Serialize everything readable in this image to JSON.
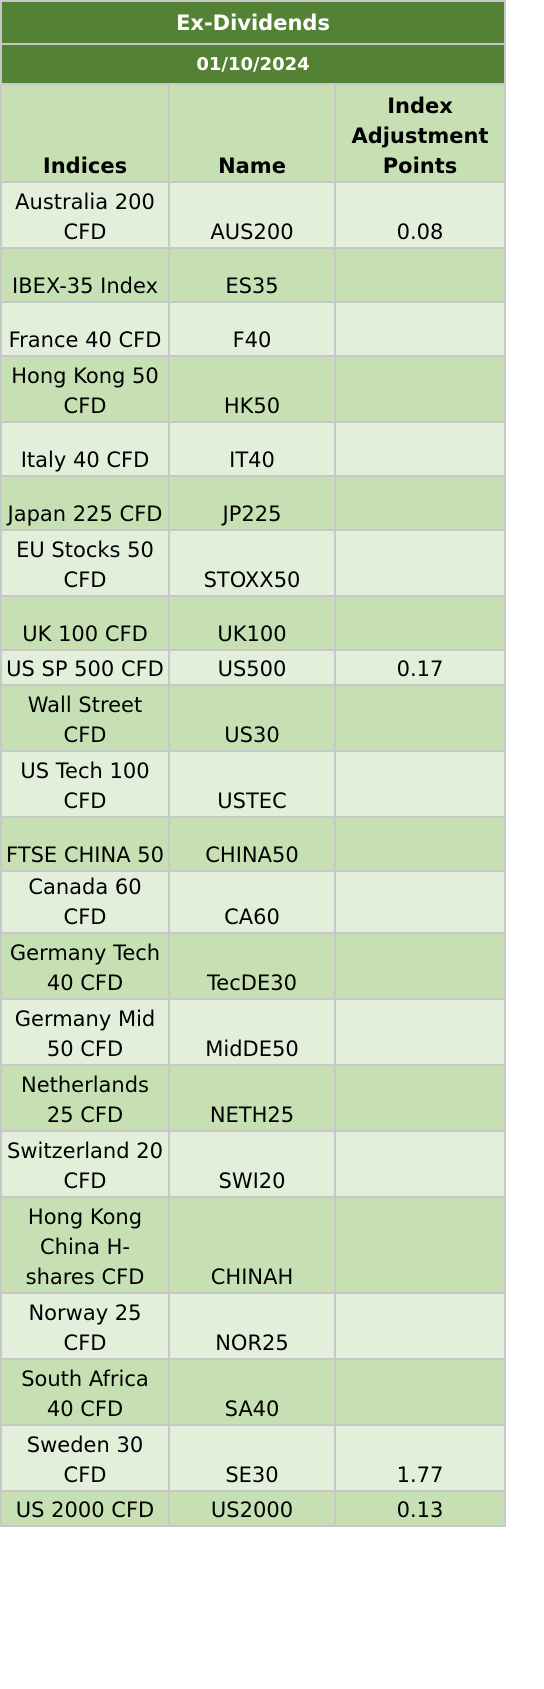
{
  "title": "Ex-Dividends",
  "date": "01/10/2024",
  "headers": {
    "indices": "Indices",
    "name": "Name",
    "points": "Index Adjustment Points"
  },
  "rows": [
    {
      "index": "Australia 200 CFD",
      "name": "AUS200",
      "points": "0.08"
    },
    {
      "index": "IBEX-35 Index",
      "name": "ES35",
      "points": ""
    },
    {
      "index": "France 40 CFD",
      "name": "F40",
      "points": ""
    },
    {
      "index": "Hong Kong 50 CFD",
      "name": "HK50",
      "points": ""
    },
    {
      "index": "Italy 40 CFD",
      "name": "IT40",
      "points": ""
    },
    {
      "index": "Japan 225 CFD",
      "name": "JP225",
      "points": ""
    },
    {
      "index": "EU Stocks 50 CFD",
      "name": "STOXX50",
      "points": ""
    },
    {
      "index": "UK 100 CFD",
      "name": "UK100",
      "points": ""
    },
    {
      "index": "US SP 500 CFD",
      "name": "US500",
      "points": "0.17"
    },
    {
      "index": "Wall Street CFD",
      "name": "US30",
      "points": ""
    },
    {
      "index": "US Tech 100 CFD",
      "name": "USTEC",
      "points": ""
    },
    {
      "index": "FTSE CHINA 50",
      "name": "CHINA50",
      "points": ""
    },
    {
      "index": "Canada 60 CFD",
      "name": "CA60",
      "points": ""
    },
    {
      "index": "Germany Tech 40 CFD",
      "name": "TecDE30",
      "points": ""
    },
    {
      "index": "Germany Mid 50 CFD",
      "name": "MidDE50",
      "points": ""
    },
    {
      "index": "Netherlands 25 CFD",
      "name": "NETH25",
      "points": ""
    },
    {
      "index": "Switzerland 20 CFD",
      "name": "SWI20",
      "points": ""
    },
    {
      "index": "Hong Kong China H-shares CFD",
      "name": "CHINAH",
      "points": ""
    },
    {
      "index": "Norway 25 CFD",
      "name": "NOR25",
      "points": ""
    },
    {
      "index": "South Africa 40 CFD",
      "name": "SA40",
      "points": ""
    },
    {
      "index": "Sweden 30 CFD",
      "name": "SE30",
      "points": "1.77"
    },
    {
      "index": "US 2000 CFD",
      "name": "US2000",
      "points": "0.13"
    }
  ]
}
